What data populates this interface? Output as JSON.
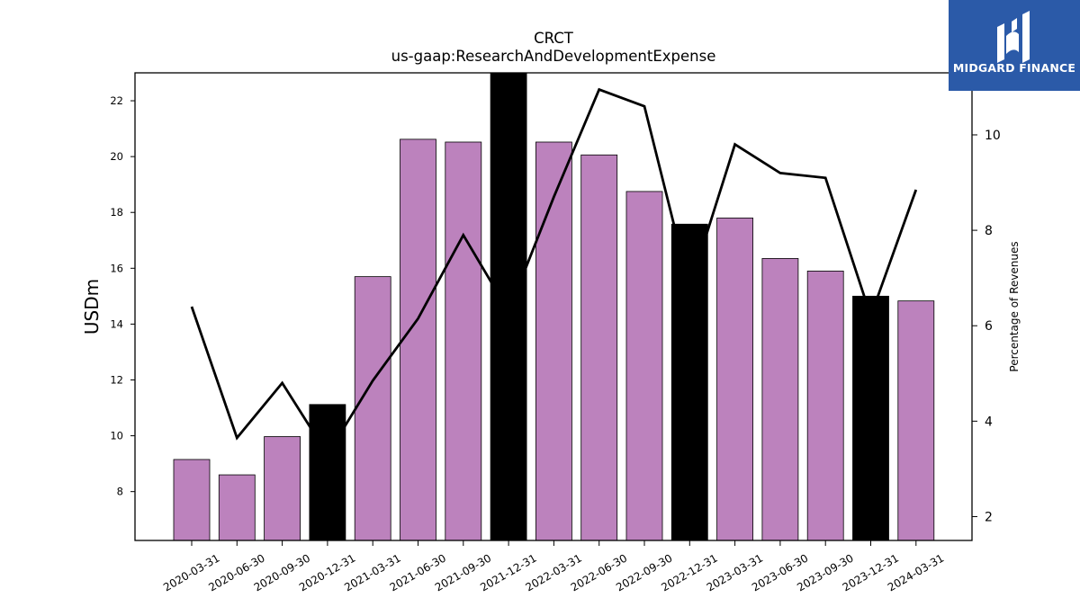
{
  "chart_data": {
    "type": "bar",
    "title": "CRCT",
    "subtitle": "us-gaap:ResearchAndDevelopmentExpense",
    "ylabel": "USDm",
    "y2label": "Percentage of Revenues",
    "categories": [
      "2020-03-31",
      "2020-06-30",
      "2020-09-30",
      "2020-12-31",
      "2021-03-31",
      "2021-06-30",
      "2021-09-30",
      "2021-12-31",
      "2022-03-31",
      "2022-06-30",
      "2022-09-30",
      "2022-12-31",
      "2023-03-31",
      "2023-06-30",
      "2023-09-30",
      "2023-12-31",
      "2024-03-31"
    ],
    "series": [
      {
        "values": [
          9.15,
          8.6,
          9.97,
          11.12,
          15.7,
          20.62,
          20.52,
          23.0,
          20.52,
          20.06,
          18.75,
          17.58,
          17.8,
          16.35,
          15.9,
          15.0,
          14.83
        ],
        "highlighted": [
          false,
          false,
          false,
          true,
          false,
          false,
          false,
          true,
          false,
          false,
          false,
          true,
          false,
          false,
          false,
          true,
          false
        ]
      },
      {
        "axis": "right",
        "values": [
          6.4,
          3.65,
          4.8,
          3.3,
          4.85,
          6.15,
          7.9,
          6.3,
          8.7,
          10.95,
          10.6,
          6.8,
          9.8,
          9.2,
          9.1,
          6.2,
          8.85
        ]
      }
    ],
    "ylim": [
      6.25,
      23.0
    ],
    "yticks": [
      8,
      10,
      12,
      14,
      16,
      18,
      20,
      22
    ],
    "y2lim": [
      1.5,
      11.3
    ],
    "y2ticks": [
      2,
      4,
      6,
      8,
      10
    ],
    "colors": {
      "bar": "#bc82bd",
      "bar_highlight": "#000000",
      "line": "#000000"
    },
    "grid": false,
    "legend": "none"
  },
  "logo": {
    "text": "MIDGARD FINANCE",
    "color": "#2b5aa8"
  }
}
